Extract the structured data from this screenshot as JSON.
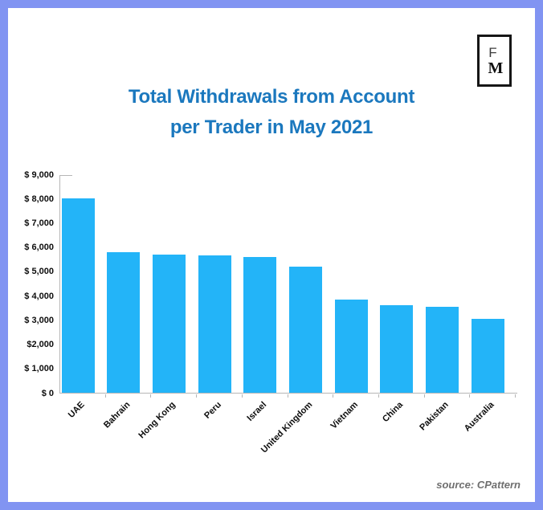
{
  "frame": {
    "border_color": "#8194f2",
    "background_color": "#ffffff"
  },
  "logo": {
    "letter_top": "F",
    "letter_bottom": "M"
  },
  "title": {
    "line1": "Total Withdrawals from Account",
    "line2": "per Trader in May 2021",
    "color": "#1b78be"
  },
  "source": {
    "label": "source: CPattern"
  },
  "chart_data": {
    "type": "bar",
    "title": "Total Withdrawals from Account per Trader in May 2021",
    "categories": [
      "UAE",
      "Bahrain",
      "Hong Kong",
      "Peru",
      "Israel",
      "United Kingdom",
      "Vietnam",
      "China",
      "Pakistan",
      "Australia"
    ],
    "values": [
      8000,
      5800,
      5700,
      5650,
      5600,
      5200,
      3850,
      3600,
      3550,
      3050
    ],
    "bar_color": "#23b4f8",
    "xlabel": "",
    "ylabel": "",
    "ylim": [
      0,
      9000
    ],
    "ytick_values": [
      9000,
      8000,
      7000,
      6000,
      5000,
      4000,
      3000,
      2000,
      1000,
      0
    ],
    "ytick_labels": [
      "$ 9,000",
      "$ 8,000",
      "$ 7,000",
      "$ 6,000",
      "$ 5,000",
      "$ 4,000",
      "$ 3,000",
      "$2,000",
      "$ 1,000",
      "$ 0"
    ],
    "grid": false,
    "legend": "none",
    "axis_color": "#b6b6b6",
    "label_color": "#0d0d0d"
  }
}
